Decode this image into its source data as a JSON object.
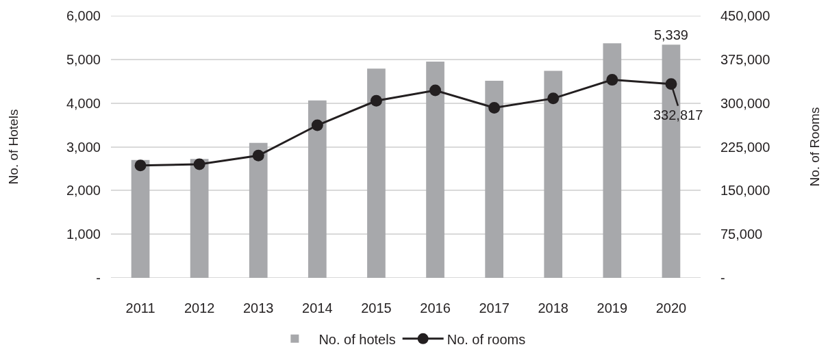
{
  "chart_data": {
    "type": "bar",
    "categories": [
      "2011",
      "2012",
      "2013",
      "2014",
      "2015",
      "2016",
      "2017",
      "2018",
      "2019",
      "2020"
    ],
    "series": [
      {
        "name": "No. of hotels",
        "color": "#a7a8ab",
        "values": [
          2700,
          2720,
          3090,
          4060,
          4790,
          4950,
          4510,
          4740,
          5370,
          5339
        ],
        "value_labels": [
          null,
          null,
          null,
          null,
          null,
          null,
          null,
          null,
          null,
          "5,339"
        ]
      },
      {
        "name": "No. of rooms",
        "type": "line",
        "axis": "y2",
        "color": "#231f20",
        "values": [
          193000,
          195000,
          210000,
          262000,
          304000,
          322000,
          292000,
          308000,
          340000,
          332817
        ],
        "value_labels": [
          null,
          null,
          null,
          null,
          null,
          null,
          null,
          null,
          null,
          "332,817"
        ]
      }
    ],
    "ylabel": "No. of Hotels",
    "y2label": "No. of Rooms",
    "ylim": [
      0,
      6000
    ],
    "yticks": [
      {
        "value": 0,
        "label": "-"
      },
      {
        "value": 1000,
        "label": "1,000"
      },
      {
        "value": 2000,
        "label": "2,000"
      },
      {
        "value": 3000,
        "label": "3,000"
      },
      {
        "value": 4000,
        "label": "4,000"
      },
      {
        "value": 5000,
        "label": "5,000"
      },
      {
        "value": 6000,
        "label": "6,000"
      }
    ],
    "y2lim": [
      0,
      450000
    ],
    "y2ticks": [
      {
        "value": 0,
        "label": "-"
      },
      {
        "value": 75000,
        "label": "75,000"
      },
      {
        "value": 150000,
        "label": "150,000"
      },
      {
        "value": 225000,
        "label": "225,000"
      },
      {
        "value": 300000,
        "label": "300,000"
      },
      {
        "value": 375000,
        "label": "375,000"
      },
      {
        "value": 450000,
        "label": "450,000"
      }
    ],
    "grid": "y",
    "legend": "bottom",
    "marker": "circle"
  }
}
